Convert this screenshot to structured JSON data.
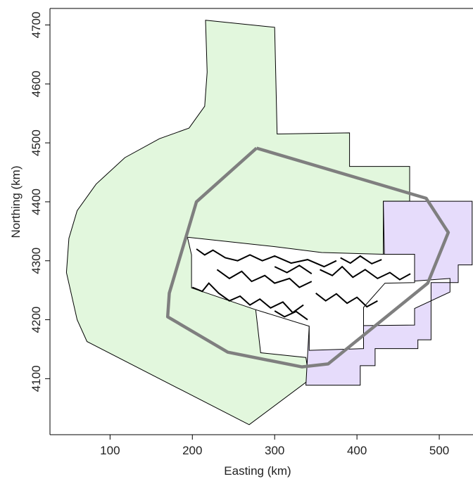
{
  "chart_data": {
    "type": "map",
    "xlabel": "Easting (km)",
    "ylabel": "Northing (km)",
    "xlim": [
      27,
      541
    ],
    "ylim": [
      4005,
      4728
    ],
    "x_ticks": [
      {
        "value": 100,
        "label": "100"
      },
      {
        "value": 200,
        "label": "200"
      },
      {
        "value": 300,
        "label": "300"
      },
      {
        "value": 400,
        "label": "400"
      },
      {
        "value": 500,
        "label": "500"
      }
    ],
    "y_ticks": [
      {
        "value": 4100,
        "label": "4100"
      },
      {
        "value": 4200,
        "label": "4200"
      },
      {
        "value": 4300,
        "label": "4300"
      },
      {
        "value": 4400,
        "label": "4400"
      },
      {
        "value": 4500,
        "label": "4500"
      },
      {
        "value": 4600,
        "label": "4600"
      },
      {
        "value": 4700,
        "label": "4700"
      }
    ],
    "colors": {
      "green_zone": "#e2f7dd",
      "purple_zone": "#e6dcfb",
      "survey_line": "#7f7f7f",
      "outline": "#000000"
    },
    "regions": [
      {
        "id": "green-zone",
        "points": [
          [
            216,
            4708
          ],
          [
            300,
            4696
          ],
          [
            303,
            4515
          ],
          [
            391,
            4517
          ],
          [
            391,
            4460
          ],
          [
            464,
            4460
          ],
          [
            464,
            4401
          ],
          [
            432,
            4401
          ],
          [
            432,
            4300
          ],
          [
            277,
            4283
          ],
          [
            277,
            4217
          ],
          [
            283,
            4144
          ],
          [
            338,
            4136
          ],
          [
            342,
            4098
          ],
          [
            269,
            4022
          ],
          [
            72,
            4163
          ],
          [
            60,
            4200
          ],
          [
            47,
            4280
          ],
          [
            50,
            4338
          ],
          [
            60,
            4385
          ],
          [
            83,
            4430
          ],
          [
            118,
            4475
          ],
          [
            160,
            4507
          ],
          [
            196,
            4525
          ],
          [
            215,
            4562
          ],
          [
            218,
            4620
          ]
        ]
      },
      {
        "id": "purple-zone",
        "points": [
          [
            432,
            4401
          ],
          [
            540,
            4401
          ],
          [
            540,
            4293
          ],
          [
            523,
            4293
          ],
          [
            523,
            4263
          ],
          [
            490,
            4263
          ],
          [
            490,
            4166
          ],
          [
            474,
            4166
          ],
          [
            474,
            4151
          ],
          [
            422,
            4151
          ],
          [
            422,
            4122
          ],
          [
            404,
            4122
          ],
          [
            404,
            4089
          ],
          [
            338,
            4089
          ],
          [
            342,
            4189
          ],
          [
            470,
            4191
          ],
          [
            470,
            4219
          ],
          [
            513,
            4247
          ],
          [
            513,
            4270
          ],
          [
            434,
            4262
          ]
        ]
      },
      {
        "id": "inner-land-area",
        "points": [
          [
            194,
            4340
          ],
          [
            300,
            4324
          ],
          [
            357,
            4314
          ],
          [
            432,
            4311
          ],
          [
            470,
            4311
          ],
          [
            470,
            4263
          ],
          [
            434,
            4262
          ],
          [
            408,
            4221
          ],
          [
            408,
            4151
          ],
          [
            342,
            4148
          ],
          [
            342,
            4189
          ],
          [
            277,
            4217
          ],
          [
            199,
            4254
          ],
          [
            199,
            4310
          ]
        ]
      }
    ],
    "survey_boundary": [
      [
        278,
        4491
      ],
      [
        484,
        4406
      ],
      [
        511,
        4348
      ],
      [
        486,
        4262
      ],
      [
        440,
        4210
      ],
      [
        365,
        4125
      ],
      [
        333,
        4120
      ],
      [
        243,
        4145
      ],
      [
        170,
        4205
      ],
      [
        172,
        4245
      ],
      [
        205,
        4400
      ],
      [
        278,
        4491
      ]
    ]
  }
}
